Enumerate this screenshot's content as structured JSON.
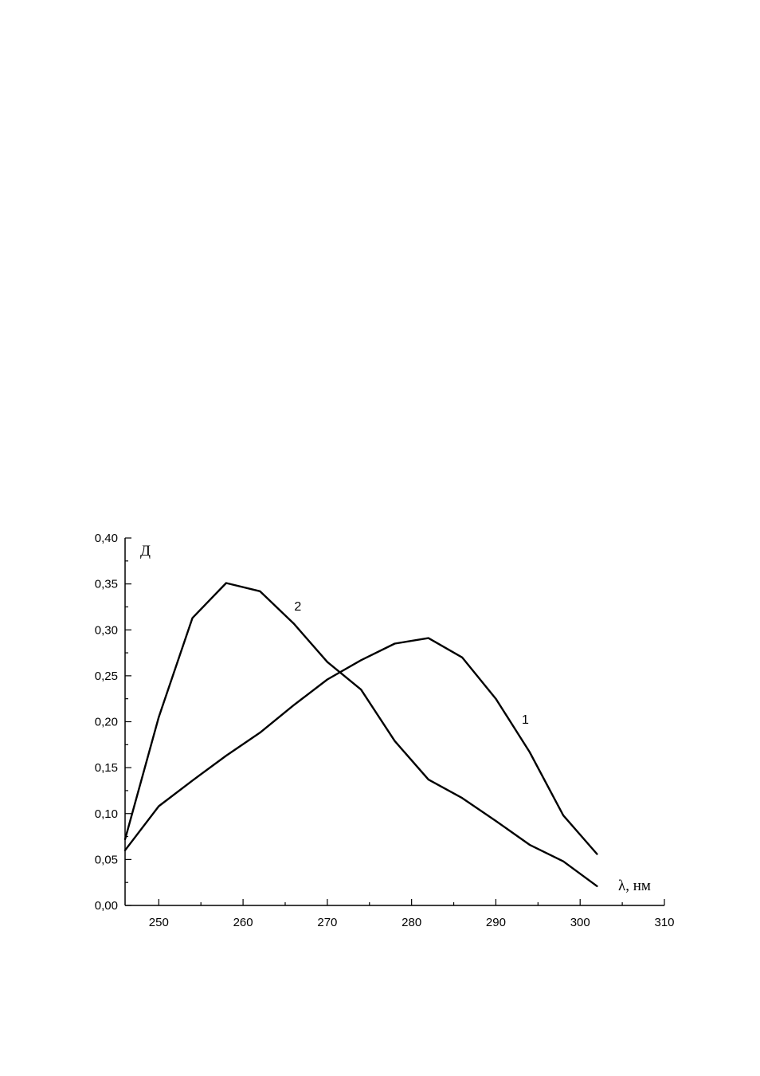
{
  "chart_data": {
    "type": "line",
    "title": "",
    "xlabel": "λ, нм",
    "ylabel": "Д",
    "xlim": [
      246,
      310
    ],
    "ylim": [
      0.0,
      0.4
    ],
    "x_ticks": [
      250,
      260,
      270,
      280,
      290,
      300,
      310
    ],
    "x_tick_labels": [
      "250",
      "260",
      "270",
      "280",
      "290",
      "300",
      "310"
    ],
    "y_ticks": [
      0.0,
      0.05,
      0.1,
      0.15,
      0.2,
      0.25,
      0.3,
      0.35,
      0.4
    ],
    "y_tick_labels": [
      "0,00",
      "0,05",
      "0,10",
      "0,15",
      "0,20",
      "0,25",
      "0,30",
      "0,35",
      "0,40"
    ],
    "grid": false,
    "legend": "none",
    "series": [
      {
        "label": "1",
        "x": [
          246,
          250,
          254,
          258,
          262,
          266,
          270,
          274,
          278,
          282,
          286,
          290,
          294,
          298,
          302
        ],
        "y": [
          0.06,
          0.108,
          0.136,
          0.163,
          0.188,
          0.218,
          0.246,
          0.267,
          0.285,
          0.291,
          0.27,
          0.225,
          0.167,
          0.098,
          0.056
        ]
      },
      {
        "label": "2",
        "x": [
          246,
          250,
          254,
          258,
          262,
          266,
          270,
          274,
          278,
          282,
          286,
          290,
          294,
          298,
          302
        ],
        "y": [
          0.072,
          0.205,
          0.313,
          0.351,
          0.342,
          0.307,
          0.265,
          0.235,
          0.179,
          0.137,
          0.117,
          0.092,
          0.066,
          0.048,
          0.021
        ]
      }
    ]
  }
}
